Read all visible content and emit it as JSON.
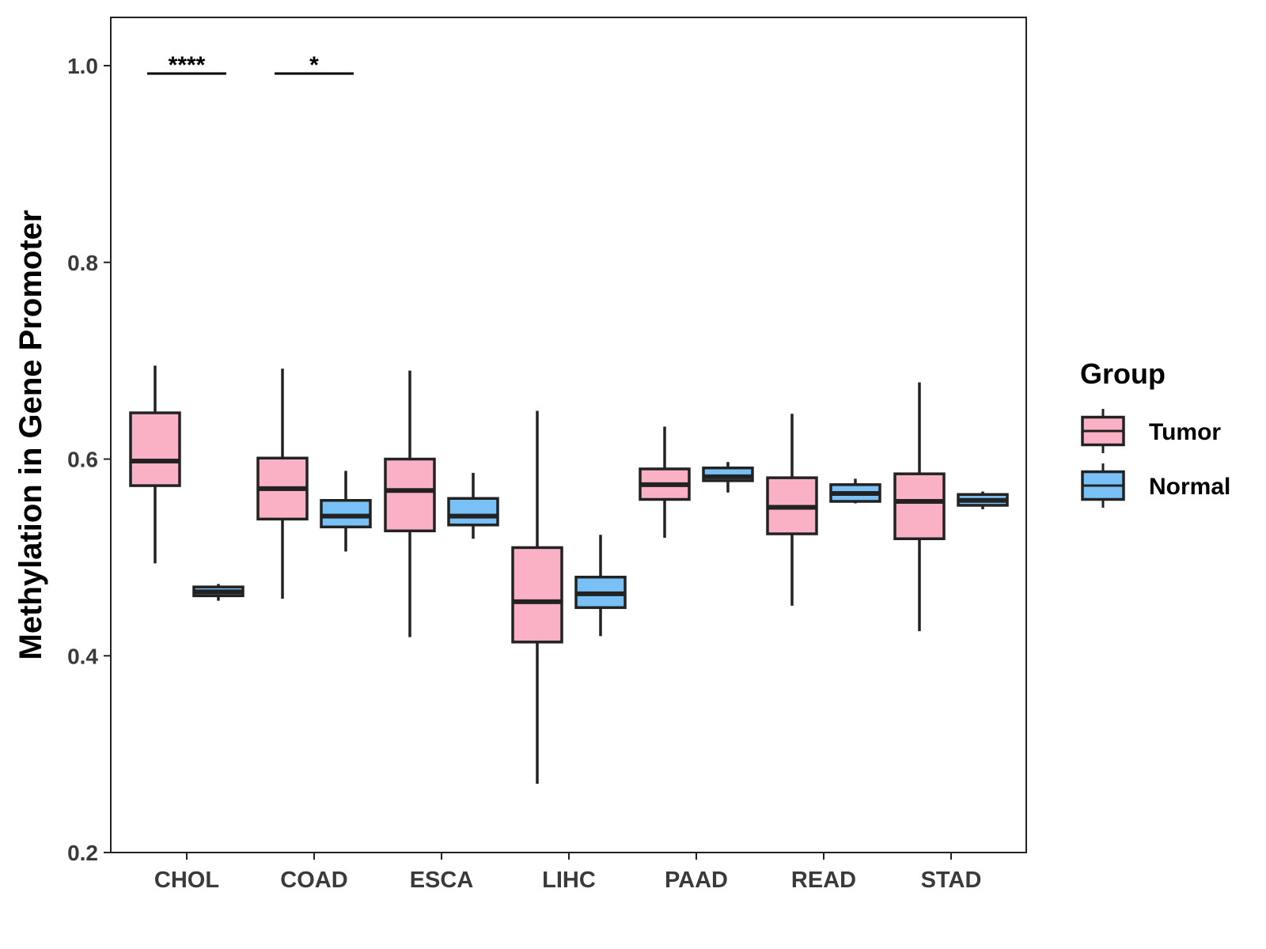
{
  "chart_data": {
    "type": "boxplot",
    "title": "",
    "xlabel": "",
    "ylabel": "Methylation in Gene Promoter",
    "ylim": [
      0.2,
      1.05
    ],
    "yticks": [
      0.2,
      0.4,
      0.6,
      0.8,
      1.0
    ],
    "ytick_labels": [
      "0.2",
      "0.4",
      "0.6",
      "0.8",
      "1.0"
    ],
    "categories": [
      "CHOL",
      "COAD",
      "ESCA",
      "LIHC",
      "PAAD",
      "READ",
      "STAD"
    ],
    "legend": {
      "title": "Group",
      "position": "right",
      "entries": [
        {
          "name": "Tumor",
          "color": "#FBB1C5"
        },
        {
          "name": "Normal",
          "color": "#78C0F5"
        }
      ]
    },
    "series": [
      {
        "name": "Tumor",
        "color": "#FBB1C5",
        "boxes": [
          {
            "min": 0.494,
            "q1": 0.573,
            "median": 0.598,
            "q3": 0.647,
            "max": 0.695
          },
          {
            "min": 0.458,
            "q1": 0.539,
            "median": 0.57,
            "q3": 0.601,
            "max": 0.692
          },
          {
            "min": 0.419,
            "q1": 0.527,
            "median": 0.568,
            "q3": 0.6,
            "max": 0.69
          },
          {
            "min": 0.27,
            "q1": 0.414,
            "median": 0.455,
            "q3": 0.51,
            "max": 0.649
          },
          {
            "min": 0.52,
            "q1": 0.559,
            "median": 0.574,
            "q3": 0.59,
            "max": 0.633
          },
          {
            "min": 0.451,
            "q1": 0.524,
            "median": 0.551,
            "q3": 0.581,
            "max": 0.646
          },
          {
            "min": 0.425,
            "q1": 0.519,
            "median": 0.557,
            "q3": 0.585,
            "max": 0.678
          }
        ]
      },
      {
        "name": "Normal",
        "color": "#78C0F5",
        "boxes": [
          {
            "min": 0.456,
            "q1": 0.461,
            "median": 0.465,
            "q3": 0.47,
            "max": 0.473
          },
          {
            "min": 0.506,
            "q1": 0.531,
            "median": 0.542,
            "q3": 0.558,
            "max": 0.588
          },
          {
            "min": 0.519,
            "q1": 0.533,
            "median": 0.542,
            "q3": 0.56,
            "max": 0.586
          },
          {
            "min": 0.42,
            "q1": 0.449,
            "median": 0.463,
            "q3": 0.48,
            "max": 0.523
          },
          {
            "min": 0.566,
            "q1": 0.578,
            "median": 0.582,
            "q3": 0.591,
            "max": 0.597
          },
          {
            "min": 0.555,
            "q1": 0.557,
            "median": 0.565,
            "q3": 0.574,
            "max": 0.58
          },
          {
            "min": 0.549,
            "q1": 0.553,
            "median": 0.558,
            "q3": 0.564,
            "max": 0.567
          }
        ]
      }
    ],
    "annotations": [
      {
        "category": "CHOL",
        "label": "****",
        "y": 0.992
      },
      {
        "category": "COAD",
        "label": "*",
        "y": 0.992
      }
    ]
  }
}
